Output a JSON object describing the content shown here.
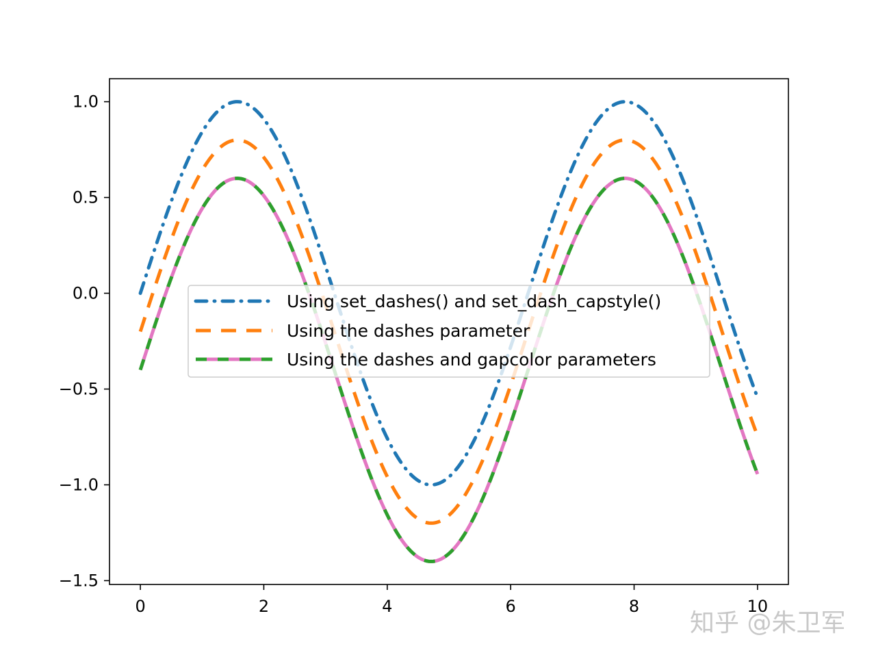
{
  "chart_data": {
    "type": "line",
    "title": "",
    "xlabel": "",
    "ylabel": "",
    "xlim": [
      -0.5,
      10.5
    ],
    "ylim": [
      -1.52,
      1.12
    ],
    "xticks": [
      0,
      2,
      4,
      6,
      8,
      10
    ],
    "xtick_labels": [
      "0",
      "2",
      "4",
      "6",
      "8",
      "10"
    ],
    "yticks": [
      1.0,
      0.5,
      0.0,
      -0.5,
      -1.0,
      -1.5
    ],
    "ytick_labels": [
      "1.0",
      "0.5",
      "0.0",
      "−0.5",
      "−1.0",
      "−1.5"
    ],
    "grid": false,
    "legend_position": "center",
    "x_range": [
      0,
      10
    ],
    "series": [
      {
        "name": "Using set_dashes() and set_dash_capstyle()",
        "function": "sin(x)",
        "offset": 0.0,
        "color": "#1f77b4",
        "style": "dash-dot with round caps"
      },
      {
        "name": "Using the dashes parameter",
        "function": "sin(x) - 0.2",
        "offset": -0.2,
        "color": "#ff7f0e",
        "style": "dashed"
      },
      {
        "name": "Using the dashes and gapcolor parameters",
        "function": "sin(x) - 0.4",
        "offset": -0.4,
        "color": "#2ca02c",
        "gapcolor": "#e377c2",
        "style": "dashed with colored gaps"
      }
    ]
  },
  "watermark": "知乎 @朱卫军"
}
